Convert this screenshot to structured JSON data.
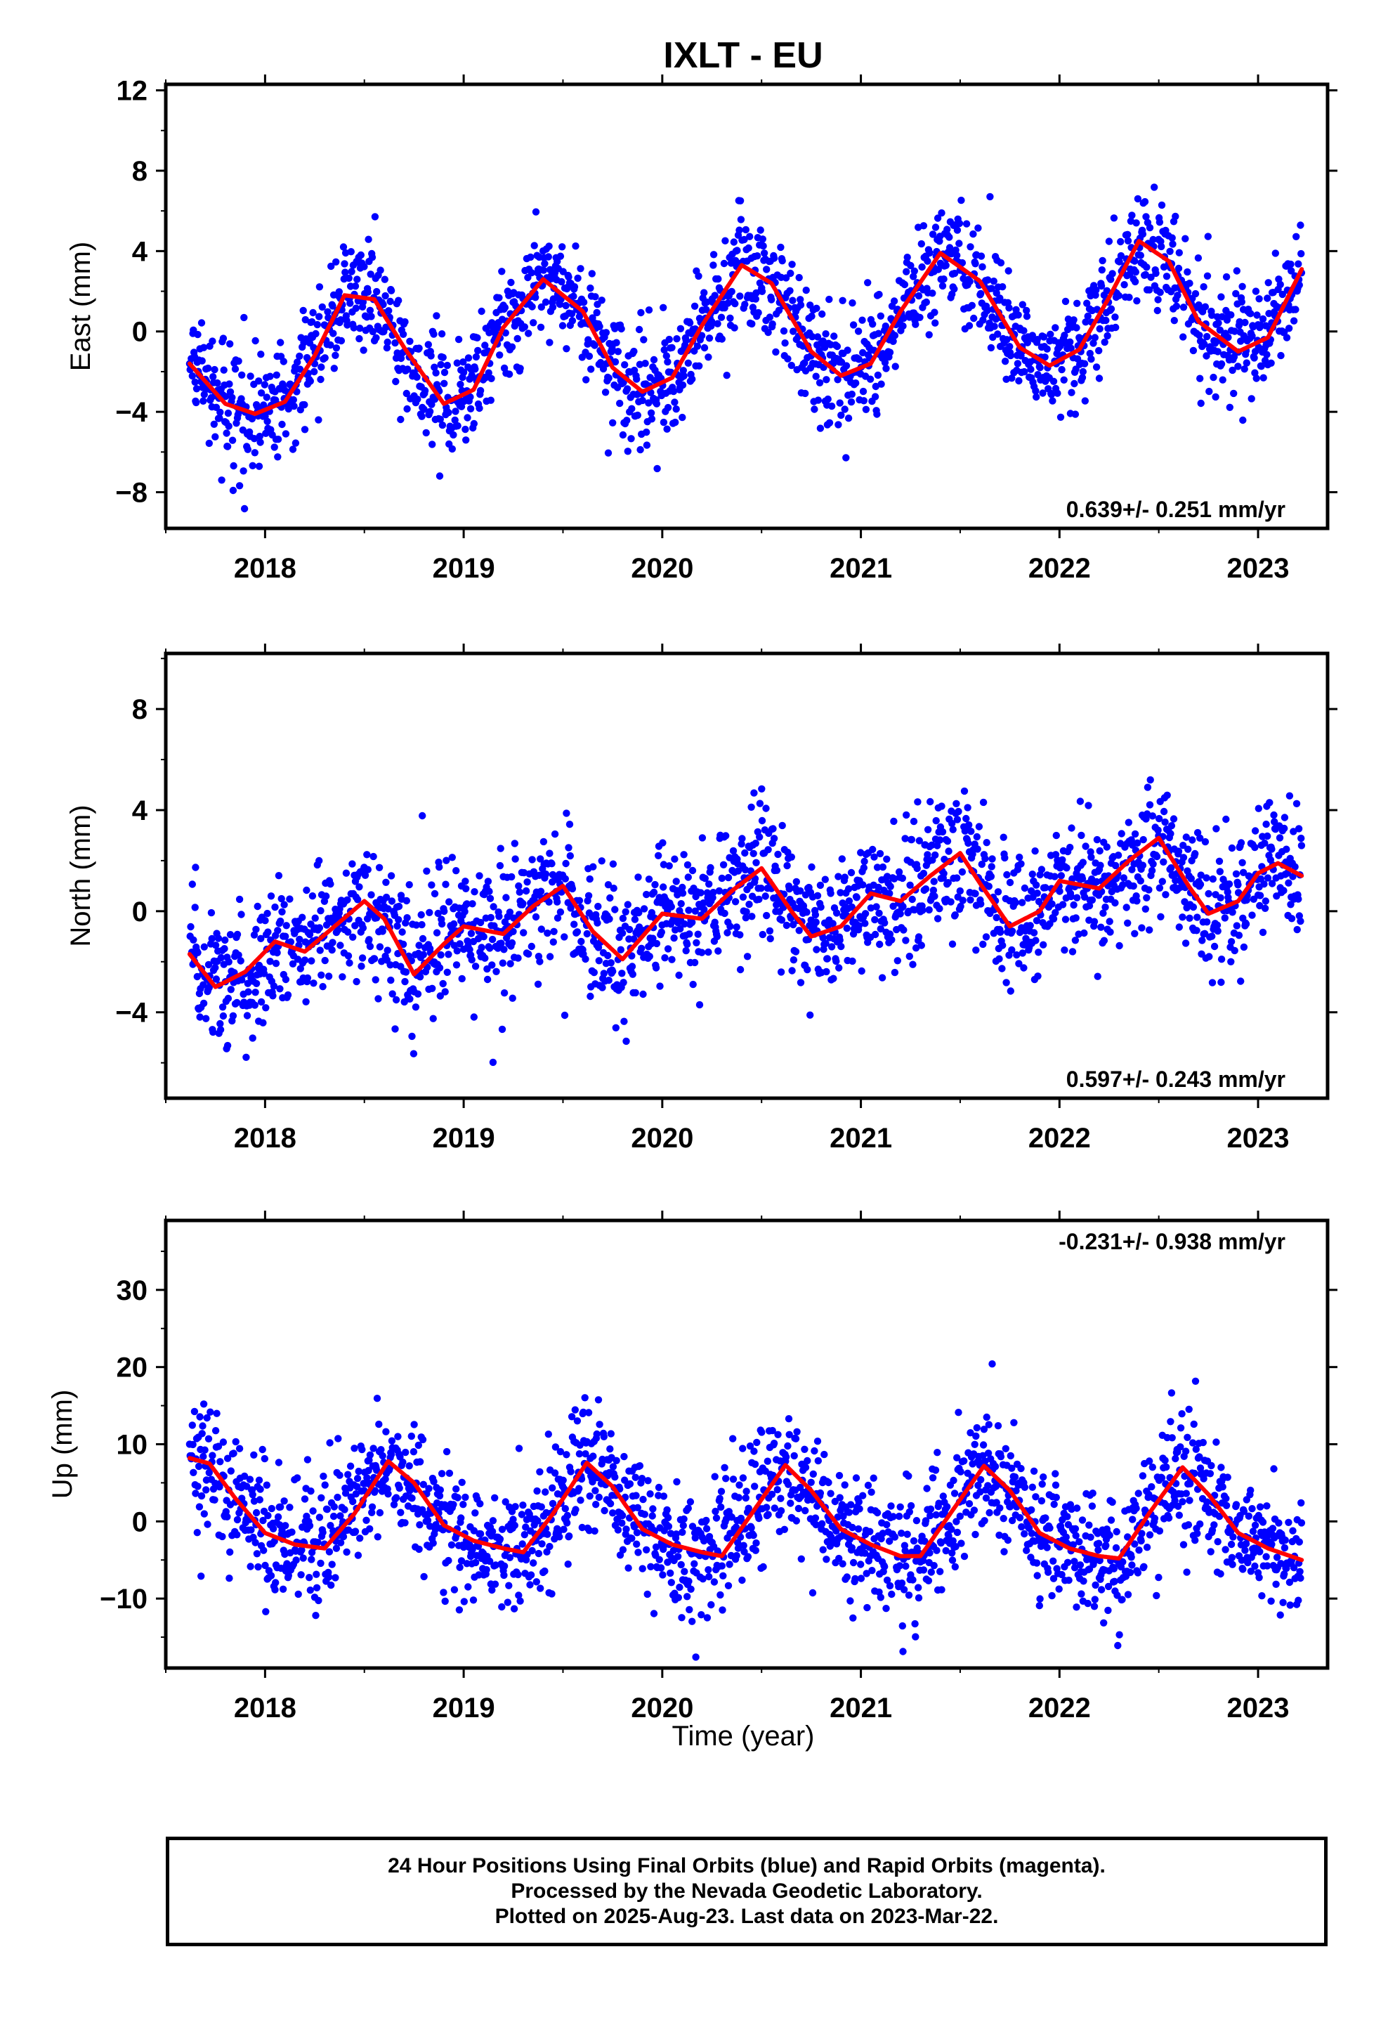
{
  "title": "IXLT - EU",
  "colors": {
    "data_points": "#0000ff",
    "model_fit": "#ff0000",
    "frame": "#000000"
  },
  "xaxis": {
    "label": "Time (year)",
    "range": [
      2017.5,
      2023.35
    ],
    "ticks": [
      2018,
      2019,
      2020,
      2021,
      2022,
      2023
    ],
    "tick_labels": [
      "2018",
      "2019",
      "2020",
      "2021",
      "2022",
      "2023"
    ]
  },
  "data_span": {
    "start": 2017.62,
    "end": 2023.22
  },
  "footer": {
    "line1": "24 Hour Positions Using Final Orbits (blue) and Rapid Orbits (magenta).",
    "line2": "Processed by the Nevada Geodetic Laboratory.",
    "line3": "Plotted on 2025-Aug-23. Last data on 2023-Mar-22."
  },
  "chart_data": [
    {
      "type": "scatter",
      "component": "east",
      "ylabel": "East (mm)",
      "ylim": [
        -9.8,
        12.3
      ],
      "yticks": [
        -8,
        -4,
        0,
        4,
        8,
        12
      ],
      "ytick_labels": [
        "−8",
        "−4",
        "0",
        "4",
        "8",
        "12"
      ],
      "rate_label": "0.639+/- 0.251 mm/yr",
      "model": {
        "offset": -0.5,
        "trend": 0.639,
        "annual_amp": 3.0,
        "annual_peak": 2018.42,
        "semiannual_amp": 0,
        "semiannual_peak": 2018.0,
        "start_offset": 0
      },
      "scatter_sigma": 1.4,
      "curve": [
        {
          "x": 2017.62,
          "y": -1.6
        },
        {
          "x": 2017.8,
          "y": -3.6
        },
        {
          "x": 2017.95,
          "y": -4.1
        },
        {
          "x": 2018.1,
          "y": -3.5
        },
        {
          "x": 2018.25,
          "y": -1.2
        },
        {
          "x": 2018.4,
          "y": 1.8
        },
        {
          "x": 2018.55,
          "y": 1.6
        },
        {
          "x": 2018.7,
          "y": -0.8
        },
        {
          "x": 2018.9,
          "y": -3.6
        },
        {
          "x": 2019.05,
          "y": -2.9
        },
        {
          "x": 2019.2,
          "y": 0.2
        },
        {
          "x": 2019.4,
          "y": 2.6
        },
        {
          "x": 2019.6,
          "y": 1.0
        },
        {
          "x": 2019.75,
          "y": -1.8
        },
        {
          "x": 2019.9,
          "y": -3.0
        },
        {
          "x": 2020.05,
          "y": -2.3
        },
        {
          "x": 2020.2,
          "y": 0.3
        },
        {
          "x": 2020.4,
          "y": 3.3
        },
        {
          "x": 2020.55,
          "y": 2.4
        },
        {
          "x": 2020.75,
          "y": -1.0
        },
        {
          "x": 2020.9,
          "y": -2.2
        },
        {
          "x": 2021.05,
          "y": -1.6
        },
        {
          "x": 2021.2,
          "y": 1.0
        },
        {
          "x": 2021.4,
          "y": 3.9
        },
        {
          "x": 2021.6,
          "y": 2.5
        },
        {
          "x": 2021.8,
          "y": -0.8
        },
        {
          "x": 2021.95,
          "y": -1.7
        },
        {
          "x": 2022.1,
          "y": -0.9
        },
        {
          "x": 2022.25,
          "y": 1.7
        },
        {
          "x": 2022.4,
          "y": 4.5
        },
        {
          "x": 2022.55,
          "y": 3.5
        },
        {
          "x": 2022.7,
          "y": 0.5
        },
        {
          "x": 2022.9,
          "y": -1.0
        },
        {
          "x": 2023.05,
          "y": -0.3
        },
        {
          "x": 2023.22,
          "y": 3.1
        }
      ]
    },
    {
      "type": "scatter",
      "component": "north",
      "ylabel": "North (mm)",
      "ylim": [
        -7.4,
        10.2
      ],
      "yticks": [
        -4,
        0,
        4,
        8
      ],
      "ytick_labels": [
        "−4",
        "0",
        "4",
        "8"
      ],
      "rate_label": "0.597+/- 0.243 mm/yr",
      "model": {
        "offset": -2.0,
        "trend": 0.597,
        "annual_amp": 1.2,
        "annual_peak": 2018.5,
        "semiannual_amp": 0.6,
        "semiannual_peak": 2018.05,
        "start_offset": 0
      },
      "scatter_sigma": 1.3,
      "curve": [
        {
          "x": 2017.62,
          "y": -1.7
        },
        {
          "x": 2017.75,
          "y": -3.0
        },
        {
          "x": 2017.9,
          "y": -2.4
        },
        {
          "x": 2018.05,
          "y": -1.2
        },
        {
          "x": 2018.2,
          "y": -1.6
        },
        {
          "x": 2018.35,
          "y": -0.6
        },
        {
          "x": 2018.5,
          "y": 0.4
        },
        {
          "x": 2018.6,
          "y": -0.3
        },
        {
          "x": 2018.75,
          "y": -2.5
        },
        {
          "x": 2018.9,
          "y": -1.3
        },
        {
          "x": 2019.0,
          "y": -0.6
        },
        {
          "x": 2019.2,
          "y": -0.9
        },
        {
          "x": 2019.35,
          "y": 0.2
        },
        {
          "x": 2019.5,
          "y": 1.0
        },
        {
          "x": 2019.65,
          "y": -0.8
        },
        {
          "x": 2019.8,
          "y": -1.9
        },
        {
          "x": 2020.0,
          "y": -0.1
        },
        {
          "x": 2020.2,
          "y": -0.3
        },
        {
          "x": 2020.35,
          "y": 0.8
        },
        {
          "x": 2020.5,
          "y": 1.7
        },
        {
          "x": 2020.65,
          "y": 0.0
        },
        {
          "x": 2020.75,
          "y": -1.0
        },
        {
          "x": 2020.9,
          "y": -0.6
        },
        {
          "x": 2021.05,
          "y": 0.7
        },
        {
          "x": 2021.2,
          "y": 0.4
        },
        {
          "x": 2021.35,
          "y": 1.4
        },
        {
          "x": 2021.5,
          "y": 2.3
        },
        {
          "x": 2021.6,
          "y": 1.1
        },
        {
          "x": 2021.75,
          "y": -0.6
        },
        {
          "x": 2021.9,
          "y": 0.0
        },
        {
          "x": 2022.0,
          "y": 1.2
        },
        {
          "x": 2022.2,
          "y": 0.9
        },
        {
          "x": 2022.35,
          "y": 2.0
        },
        {
          "x": 2022.5,
          "y": 2.9
        },
        {
          "x": 2022.65,
          "y": 1.0
        },
        {
          "x": 2022.75,
          "y": -0.1
        },
        {
          "x": 2022.9,
          "y": 0.4
        },
        {
          "x": 2023.0,
          "y": 1.5
        },
        {
          "x": 2023.1,
          "y": 1.9
        },
        {
          "x": 2023.22,
          "y": 1.4
        }
      ]
    },
    {
      "type": "scatter",
      "component": "up",
      "ylabel": "Up (mm)",
      "ylim": [
        -19,
        39
      ],
      "yticks": [
        -10,
        0,
        10,
        20,
        30
      ],
      "ytick_labels": [
        "−10",
        "0",
        "10",
        "20",
        "30"
      ],
      "rate_label": "-0.231+/- 0.938 mm/yr",
      "model": {
        "offset": 0.5,
        "trend": -0.231,
        "annual_amp": 5.0,
        "annual_peak": 2018.62,
        "semiannual_amp": 1.5,
        "semiannual_peak": 2018.6,
        "start_offset": 0
      },
      "scatter_sigma": 4.2,
      "curve": [
        {
          "x": 2017.62,
          "y": 8.2
        },
        {
          "x": 2017.72,
          "y": 7.5
        },
        {
          "x": 2017.85,
          "y": 3.0
        },
        {
          "x": 2018.0,
          "y": -1.5
        },
        {
          "x": 2018.15,
          "y": -3.0
        },
        {
          "x": 2018.3,
          "y": -3.5
        },
        {
          "x": 2018.45,
          "y": 1.0
        },
        {
          "x": 2018.62,
          "y": 7.8
        },
        {
          "x": 2018.75,
          "y": 5.0
        },
        {
          "x": 2018.9,
          "y": -0.5
        },
        {
          "x": 2019.05,
          "y": -2.5
        },
        {
          "x": 2019.2,
          "y": -3.5
        },
        {
          "x": 2019.3,
          "y": -4.0
        },
        {
          "x": 2019.45,
          "y": 1.0
        },
        {
          "x": 2019.62,
          "y": 7.6
        },
        {
          "x": 2019.75,
          "y": 4.5
        },
        {
          "x": 2019.9,
          "y": -1.0
        },
        {
          "x": 2020.05,
          "y": -3.0
        },
        {
          "x": 2020.2,
          "y": -4.0
        },
        {
          "x": 2020.3,
          "y": -4.5
        },
        {
          "x": 2020.45,
          "y": 1.0
        },
        {
          "x": 2020.62,
          "y": 7.3
        },
        {
          "x": 2020.75,
          "y": 4.0
        },
        {
          "x": 2020.9,
          "y": -1.0
        },
        {
          "x": 2021.05,
          "y": -3.0
        },
        {
          "x": 2021.2,
          "y": -4.5
        },
        {
          "x": 2021.3,
          "y": -4.5
        },
        {
          "x": 2021.45,
          "y": 1.0
        },
        {
          "x": 2021.62,
          "y": 7.2
        },
        {
          "x": 2021.75,
          "y": 4.0
        },
        {
          "x": 2021.9,
          "y": -1.5
        },
        {
          "x": 2022.05,
          "y": -3.5
        },
        {
          "x": 2022.2,
          "y": -4.5
        },
        {
          "x": 2022.3,
          "y": -4.8
        },
        {
          "x": 2022.45,
          "y": 1.0
        },
        {
          "x": 2022.62,
          "y": 7.0
        },
        {
          "x": 2022.75,
          "y": 3.5
        },
        {
          "x": 2022.9,
          "y": -1.5
        },
        {
          "x": 2023.05,
          "y": -3.5
        },
        {
          "x": 2023.22,
          "y": -5.0
        }
      ]
    }
  ]
}
